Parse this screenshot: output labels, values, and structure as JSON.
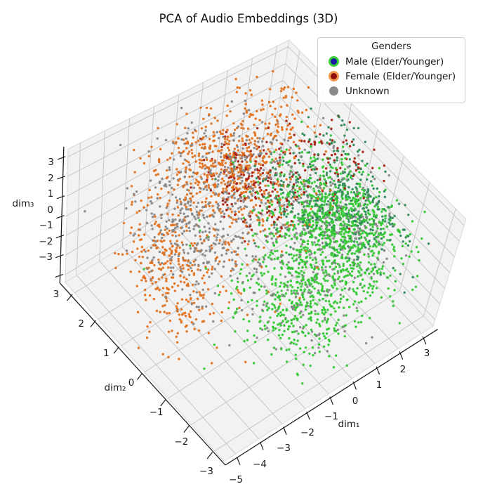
{
  "title": "PCA of Audio Embeddings (3D)",
  "legend": {
    "title": "Genders",
    "entries": [
      {
        "label": "Male (Elder/Younger)",
        "face": "#1b18a8",
        "edge": "#37cf37"
      },
      {
        "label": "Female (Elder/Younger)",
        "face": "#8f0e0e",
        "edge": "#f09a4a"
      },
      {
        "label": "Unknown",
        "face": "#8a8a8a",
        "edge": "#8a8a8a"
      }
    ]
  },
  "axes": {
    "dim1": {
      "label": "dim₁",
      "tick_labels": [
        "−5",
        "−4",
        "−3",
        "−2",
        "−1",
        "0",
        "1",
        "2",
        "3"
      ]
    },
    "dim2": {
      "label": "dim₂",
      "tick_labels": [
        "3",
        "2",
        "1",
        "0",
        "−1",
        "−2",
        "−3"
      ]
    },
    "dim3": {
      "label": "dim₃",
      "tick_labels": [
        "3",
        "2",
        "1",
        "0",
        "−1",
        "−2",
        "−3"
      ]
    }
  },
  "colors": {
    "background": "#ffffff",
    "pane": "#f2f2f2",
    "pane_edge": "#d9d9d9",
    "grid": "#c3c3c3",
    "axis": "#1c1c1c",
    "text": "#1a1a1a",
    "legend_border": "#cccccc"
  },
  "chart_data": {
    "type": "scatter",
    "projection": "3d",
    "title": "PCA of Audio Embeddings (3D)",
    "xlabel": "dim₁",
    "ylabel": "dim₂",
    "zlabel": "dim₃",
    "xlim": [
      -5.5,
      3.5
    ],
    "ylim": [
      -3.4,
      3.4
    ],
    "zlim": [
      -3.4,
      3.4
    ],
    "xticks": [
      -5,
      -4,
      -3,
      -2,
      -1,
      0,
      1,
      2,
      3
    ],
    "yticks": [
      3,
      2,
      1,
      0,
      -1,
      -2,
      -3
    ],
    "zticks": [
      3,
      2,
      1,
      0,
      -1,
      -2,
      -3
    ],
    "grid": true,
    "legend_position": "upper right",
    "groups": [
      {
        "name": "Male (Elder/Younger)",
        "colors": [
          "#32c832",
          "#2e8b57"
        ],
        "approx_points": 1905
      },
      {
        "name": "Female (Elder/Younger)",
        "colors": [
          "#e2711d",
          "#a82010"
        ],
        "approx_points": 1235
      },
      {
        "name": "Unknown",
        "colors": [
          "#878787"
        ],
        "approx_points": 920
      }
    ],
    "clusters": [
      {
        "group": "Female",
        "color": "#e2711d",
        "n": 420,
        "center": [
          -1.2,
          1.3,
          2.4
        ],
        "sigma": [
          1.0,
          0.85,
          0.55
        ]
      },
      {
        "group": "Female",
        "color": "#a82010",
        "n": 180,
        "center": [
          -0.3,
          0.9,
          1.6
        ],
        "sigma": [
          0.7,
          0.65,
          0.6
        ]
      },
      {
        "group": "Female",
        "color": "#e2711d",
        "n": 230,
        "center": [
          -3.6,
          1.0,
          -0.3
        ],
        "sigma": [
          0.75,
          0.7,
          0.8
        ]
      },
      {
        "group": "Female",
        "color": "#e2711d",
        "n": 55,
        "center": [
          -4.0,
          0.2,
          -1.9
        ],
        "sigma": [
          0.6,
          0.6,
          0.6
        ]
      },
      {
        "group": "Female",
        "color": "#e2711d",
        "n": 130,
        "center": [
          1.2,
          1.9,
          2.6
        ],
        "sigma": [
          0.9,
          0.6,
          0.5
        ]
      },
      {
        "group": "Female",
        "color": "#a82010",
        "n": 90,
        "center": [
          2.3,
          0.4,
          2.0
        ],
        "sigma": [
          0.8,
          0.7,
          0.6
        ]
      },
      {
        "group": "Female",
        "color": "#e2711d",
        "n": 130,
        "center": [
          -1.6,
          0.6,
          1.2
        ],
        "sigma": [
          1.7,
          1.3,
          1.1
        ]
      },
      {
        "group": "Male",
        "color": "#32c832",
        "n": 820,
        "center": [
          1.6,
          -0.6,
          0.1
        ],
        "sigma": [
          1.05,
          0.95,
          0.85
        ]
      },
      {
        "group": "Male",
        "color": "#32c832",
        "n": 400,
        "center": [
          -0.3,
          -1.2,
          -2.1
        ],
        "sigma": [
          0.95,
          0.85,
          0.8
        ]
      },
      {
        "group": "Male",
        "color": "#2e8b57",
        "n": 270,
        "center": [
          2.8,
          -0.8,
          0.4
        ],
        "sigma": [
          0.85,
          0.8,
          0.8
        ]
      },
      {
        "group": "Male",
        "color": "#2e8b57",
        "n": 170,
        "center": [
          1.1,
          0.2,
          0.9
        ],
        "sigma": [
          0.85,
          0.75,
          0.7
        ]
      },
      {
        "group": "Male",
        "color": "#32c832",
        "n": 190,
        "center": [
          0.9,
          -1.0,
          -0.6
        ],
        "sigma": [
          1.7,
          1.3,
          1.4
        ]
      },
      {
        "group": "Male",
        "color": "#2e8b57",
        "n": 55,
        "center": [
          3.0,
          0.6,
          1.8
        ],
        "sigma": [
          0.5,
          0.6,
          0.8
        ]
      },
      {
        "group": "Unknown",
        "color": "#878787",
        "n": 270,
        "center": [
          -2.7,
          1.0,
          0.5
        ],
        "sigma": [
          0.85,
          0.8,
          0.8
        ]
      },
      {
        "group": "Unknown",
        "color": "#878787",
        "n": 190,
        "center": [
          -0.7,
          1.4,
          2.2
        ],
        "sigma": [
          1.0,
          0.8,
          0.6
        ]
      },
      {
        "group": "Unknown",
        "color": "#878787",
        "n": 210,
        "center": [
          1.5,
          -0.6,
          0.0
        ],
        "sigma": [
          1.25,
          1.0,
          1.0
        ]
      },
      {
        "group": "Unknown",
        "color": "#878787",
        "n": 170,
        "center": [
          -0.9,
          0.1,
          0.3
        ],
        "sigma": [
          2.1,
          1.5,
          1.4
        ]
      },
      {
        "group": "Unknown",
        "color": "#878787",
        "n": 80,
        "center": [
          0.0,
          -1.3,
          -2.0
        ],
        "sigma": [
          1.0,
          0.85,
          0.8
        ]
      }
    ]
  }
}
